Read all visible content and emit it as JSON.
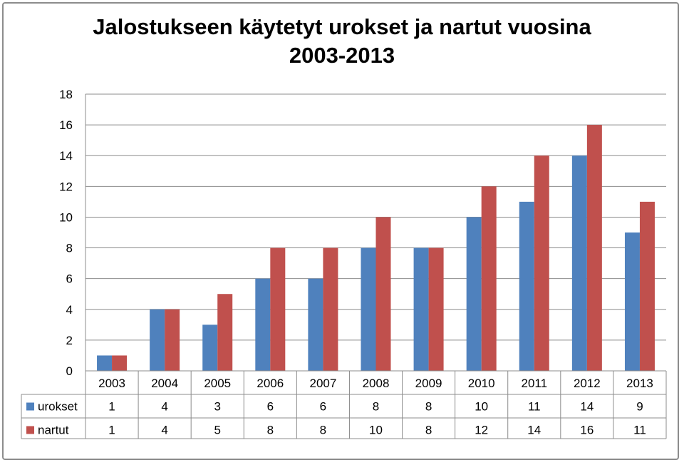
{
  "chart_data": {
    "type": "bar",
    "title": "Jalostukseen käytetyt urokset ja nartut vuosina\n2003-2013",
    "categories": [
      "2003",
      "2004",
      "2005",
      "2006",
      "2007",
      "2008",
      "2009",
      "2010",
      "2011",
      "2012",
      "2013"
    ],
    "series": [
      {
        "name": "urokset",
        "color": "#4f81bd",
        "values": [
          1,
          4,
          3,
          6,
          6,
          8,
          8,
          10,
          11,
          14,
          9
        ]
      },
      {
        "name": "nartut",
        "color": "#c0504d",
        "values": [
          1,
          4,
          5,
          8,
          8,
          10,
          8,
          12,
          14,
          16,
          11
        ]
      }
    ],
    "ylim": [
      0,
      18
    ],
    "yticks": [
      "0",
      "2",
      "4",
      "6",
      "8",
      "10",
      "12",
      "14",
      "16",
      "18"
    ],
    "grid": true,
    "data_table": true
  }
}
